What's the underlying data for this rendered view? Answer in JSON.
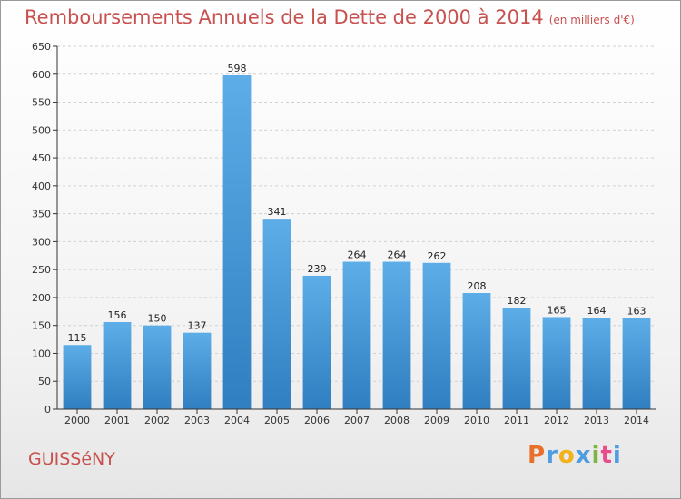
{
  "page": {
    "commune": "GUISSéNY",
    "logo": {
      "letters": [
        "P",
        "r",
        "o",
        "x",
        "i",
        "t",
        "i"
      ],
      "colors": [
        "#e8702a",
        "#4f9de0",
        "#f2b21b",
        "#4f9de0",
        "#7cb342",
        "#e84d8a",
        "#4f9de0"
      ]
    }
  },
  "chart_data": {
    "type": "bar",
    "title": "Remboursements Annuels de la Dette de 2000 à 2014",
    "subtitle": "(en milliers d'€)",
    "categories": [
      "2000",
      "2001",
      "2002",
      "2003",
      "2004",
      "2005",
      "2006",
      "2007",
      "2008",
      "2009",
      "2010",
      "2011",
      "2012",
      "2013",
      "2014"
    ],
    "values": [
      115,
      156,
      150,
      137,
      598,
      341,
      239,
      264,
      264,
      262,
      208,
      182,
      165,
      164,
      163
    ],
    "ylim": [
      0,
      650
    ],
    "yticks": [
      0,
      50,
      100,
      150,
      200,
      250,
      300,
      350,
      400,
      450,
      500,
      550,
      600,
      650
    ],
    "grid": true,
    "colors": {
      "bar_top": "#5dade8",
      "bar_bottom": "#2f7fc1",
      "title": "#c8504e"
    }
  }
}
